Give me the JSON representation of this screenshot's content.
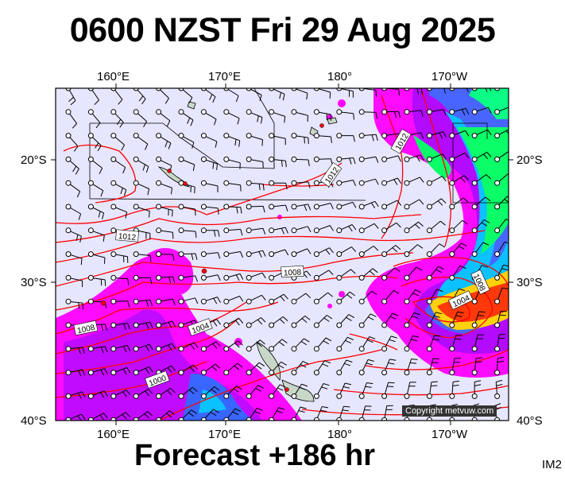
{
  "title": "0600 NZST Fri 29 Aug 2025",
  "subtitle": "Forecast +186 hr",
  "image_code": "IM2",
  "copyright": "Copyright metvuw.com",
  "lon_labels": [
    "160°E",
    "170°E",
    "180°",
    "170°W"
  ],
  "lat_labels": [
    "20°S",
    "30°S",
    "40°S"
  ],
  "isobar_labels": [
    "1012",
    "1012",
    "1012",
    "1008",
    "1008",
    "1008",
    "1004",
    "1004",
    "1000"
  ],
  "colors": {
    "background_map": "#e6e6ff",
    "isobar": "#ff0000",
    "land": "#c8d8c8",
    "rain_light": "#ff00ff",
    "rain_mid": "#8a2be2",
    "rain_heavy": "#00ff00",
    "rain_extreme": "#ff0000"
  }
}
